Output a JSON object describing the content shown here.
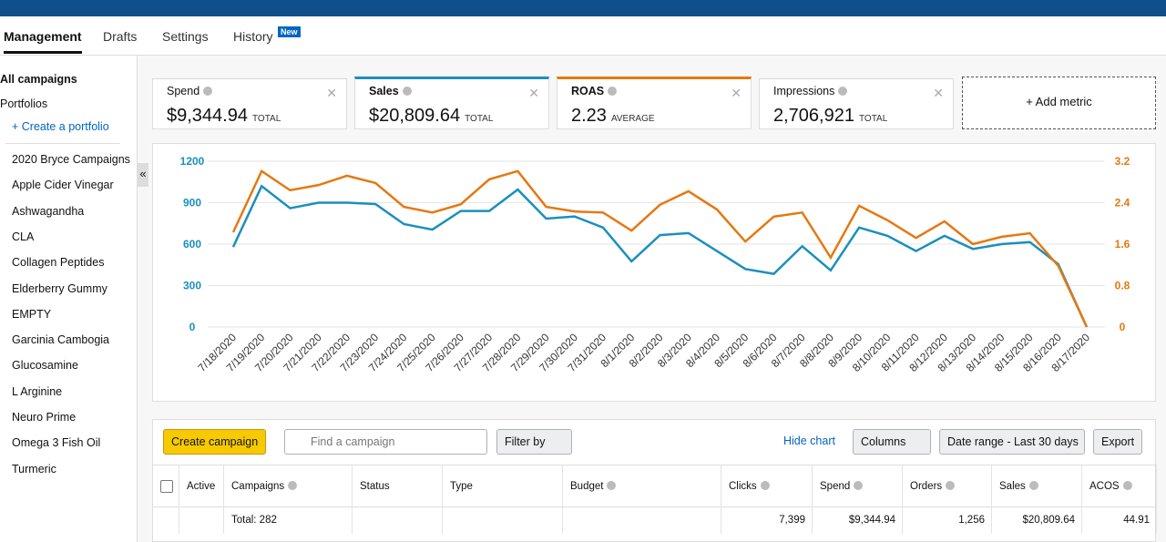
{
  "tabs": [
    "Management",
    "Drafts",
    "Settings",
    "History"
  ],
  "tab_badge": "New",
  "sidebar": {
    "all_campaigns": "All campaigns",
    "portfolios": "Portfolios",
    "create_portfolio": "+ Create a portfolio",
    "collapse": "«",
    "items": [
      "2020 Bryce Campaigns",
      "Apple Cider Vinegar",
      "Ashwagandha",
      "CLA",
      "Collagen Peptides",
      "Elderberry Gummy",
      "EMPTY",
      "Garcinia Cambogia",
      "Glucosamine",
      "L Arginine",
      "Neuro Prime",
      "Omega 3 Fish Oil",
      "Turmeric"
    ]
  },
  "metrics": [
    {
      "name": "Spend",
      "value": "$9,344.94",
      "aggregate": "TOTAL",
      "accent": "#d5d9d9"
    },
    {
      "name": "Sales",
      "value": "$20,809.64",
      "aggregate": "TOTAL",
      "accent": "#1b8fbd"
    },
    {
      "name": "ROAS",
      "value": "2.23",
      "aggregate": "AVERAGE",
      "accent": "#e47911"
    },
    {
      "name": "Impressions",
      "value": "2,706,921",
      "aggregate": "TOTAL",
      "accent": "#d5d9d9"
    }
  ],
  "add_metric": "+ Add metric",
  "chart_data": {
    "type": "line",
    "x": [
      "7/18/2020",
      "7/19/2020",
      "7/20/2020",
      "7/21/2020",
      "7/22/2020",
      "7/23/2020",
      "7/24/2020",
      "7/25/2020",
      "7/26/2020",
      "7/27/2020",
      "7/28/2020",
      "7/29/2020",
      "7/30/2020",
      "7/31/2020",
      "8/1/2020",
      "8/2/2020",
      "8/3/2020",
      "8/4/2020",
      "8/5/2020",
      "8/6/2020",
      "8/7/2020",
      "8/8/2020",
      "8/9/2020",
      "8/10/2020",
      "8/11/2020",
      "8/12/2020",
      "8/13/2020",
      "8/14/2020",
      "8/15/2020",
      "8/16/2020",
      "8/17/2020"
    ],
    "series": [
      {
        "color": "#1b8fbd",
        "axis": "y",
        "values": [
          580,
          1020,
          860,
          900,
          900,
          890,
          745,
          705,
          840,
          840,
          995,
          785,
          800,
          720,
          475,
          665,
          680,
          550,
          420,
          385,
          585,
          410,
          720,
          660,
          550,
          660,
          565,
          600,
          615,
          455,
          0
        ]
      },
      {
        "color": "#e47911",
        "axis": "y2",
        "values": [
          1.83,
          3.01,
          2.64,
          2.74,
          2.92,
          2.78,
          2.32,
          2.21,
          2.37,
          2.85,
          3.01,
          2.32,
          2.23,
          2.21,
          1.86,
          2.36,
          2.62,
          2.27,
          1.65,
          2.13,
          2.21,
          1.34,
          2.34,
          2.06,
          1.72,
          2.04,
          1.6,
          1.74,
          1.81,
          1.18,
          0
        ]
      }
    ],
    "ylim": [
      0,
      1200
    ],
    "yticks": [
      0,
      300,
      600,
      900,
      1200
    ],
    "y2lim": [
      0,
      3.2
    ],
    "y2ticks": [
      0,
      0.8,
      1.6,
      2.4,
      3.2
    ],
    "grid": true
  },
  "toolbar": {
    "create": "Create campaign",
    "search_placeholder": "Find a campaign",
    "filter": "Filter by",
    "hide_chart": "Hide chart",
    "columns": "Columns",
    "date_range": "Date range - Last 30 days",
    "export": "Export"
  },
  "table": {
    "columns": [
      "Active",
      "Campaigns",
      "Status",
      "Type",
      "Budget",
      "Clicks",
      "Spend",
      "Orders",
      "Sales",
      "ACOS"
    ],
    "total_row": [
      "Total: 282",
      "7,399",
      "$9,344.94",
      "1,256",
      "$20,809.64",
      "44.91"
    ]
  }
}
